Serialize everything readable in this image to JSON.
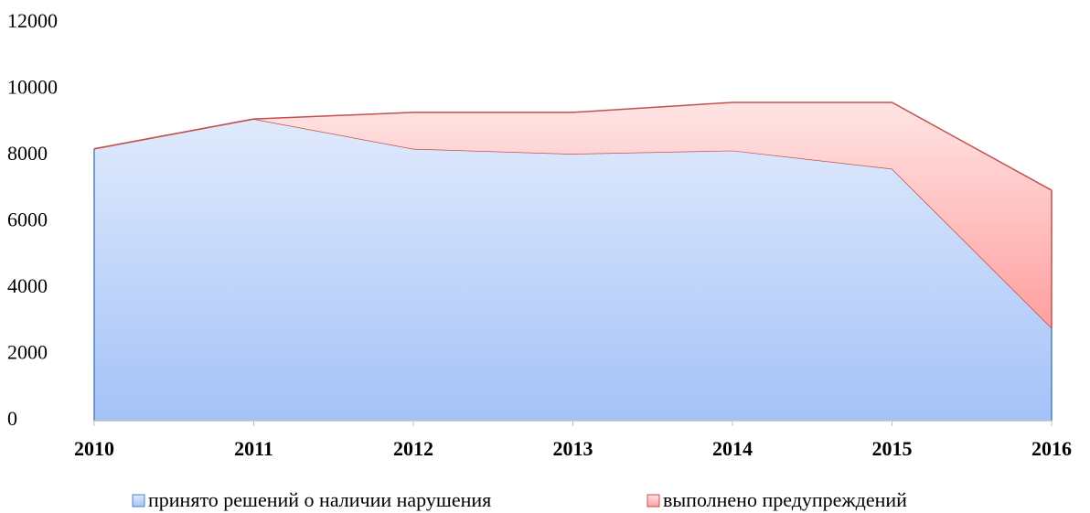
{
  "chart_data": {
    "type": "stacked_area",
    "categories": [
      "2010",
      "2011",
      "2012",
      "2013",
      "2014",
      "2015",
      "2016"
    ],
    "series": [
      {
        "name": "принято решений о наличии нарушения",
        "color": "#a4c2f8",
        "values": [
          8200,
          9100,
          8200,
          8050,
          8150,
          7600,
          2800
        ]
      },
      {
        "name": "выполнено предупреждений",
        "color": "#ff9f9f",
        "values": [
          0,
          0,
          1100,
          1250,
          1450,
          2000,
          4150
        ]
      }
    ],
    "ylim": [
      0,
      12000
    ],
    "yticks": [
      0,
      2000,
      4000,
      6000,
      8000,
      10000,
      12000
    ],
    "grid": false,
    "legend": "bottom"
  }
}
